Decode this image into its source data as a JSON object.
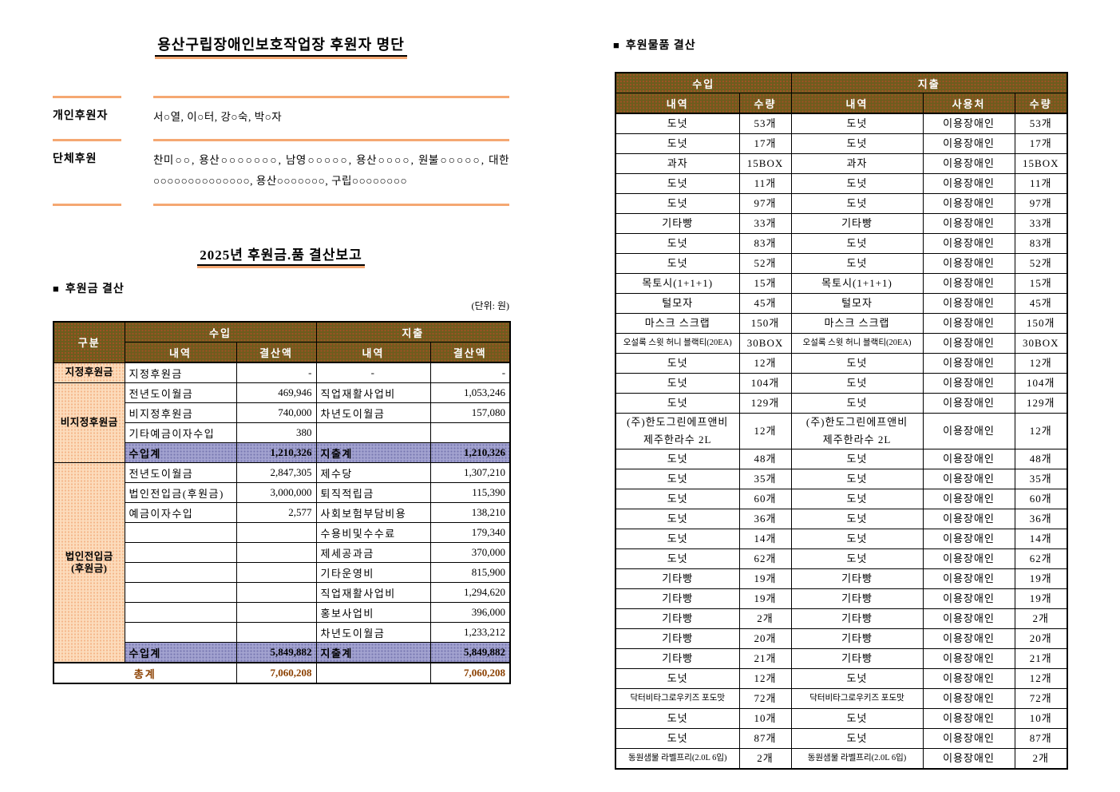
{
  "theme": {
    "header_bg": "#6d5d1d",
    "header_text": "#ffffff",
    "group_cell_bg": "#fcdcbc",
    "subtotal_bg": "#a3a3d0",
    "total_text": "#8b4000",
    "accent_line": "#f5a872"
  },
  "left": {
    "title": "용산구립장애인보호작업장 후원자 명단",
    "donors": {
      "rows": [
        {
          "label": "개인후원자",
          "value": "서○열, 이○터, 강○숙, 박○자"
        },
        {
          "label": "단체후원",
          "value": "찬미○○, 용산○○○○○○○, 남영○○○○○, 용산○○○○, 원불○○○○○, 대한○○○○○○○○○○○○○○, 용산○○○○○○○, 구립○○○○○○○○"
        }
      ]
    },
    "report_title": "2025년 후원금.품 결산보고",
    "section_bullet": "■",
    "section_title": "후원금 결산",
    "unit_note": "(단위: 원)",
    "money_table": {
      "headers": {
        "gubun": "구분",
        "income": "수입",
        "expense": "지출",
        "detail": "내역",
        "amount": "결산액"
      },
      "rows": [
        {
          "group": [
            "지정후원금"
          ],
          "rowspan": 1,
          "cells": [
            "지정후원금",
            "-",
            "-",
            "-"
          ]
        },
        {
          "group": [
            "비지정후원금"
          ],
          "rowspan": 4,
          "cells": [
            "전년도이월금",
            "469,946",
            "직업재활사업비",
            "1,053,246"
          ]
        },
        {
          "cells": [
            "비지정후원금",
            "740,000",
            "차년도이월금",
            "157,080"
          ]
        },
        {
          "cells": [
            "기타예금이자수입",
            "380",
            "",
            ""
          ]
        },
        {
          "subtotal": true,
          "cells": [
            "수입계",
            "1,210,326",
            "지출계",
            "1,210,326"
          ]
        },
        {
          "group": [
            "법인전입금",
            "(후원금)"
          ],
          "rowspan": 10,
          "cells": [
            "전년도이월금",
            "2,847,305",
            "제수당",
            "1,307,210"
          ]
        },
        {
          "cells": [
            "법인전입금(후원금)",
            "3,000,000",
            "퇴직적립금",
            "115,390"
          ]
        },
        {
          "cells": [
            "예금이자수입",
            "2,577",
            "사회보험부담비용",
            "138,210"
          ]
        },
        {
          "cells": [
            "",
            "",
            "수용비및수수료",
            "179,340"
          ]
        },
        {
          "cells": [
            "",
            "",
            "제세공과금",
            "370,000"
          ]
        },
        {
          "cells": [
            "",
            "",
            "기타운영비",
            "815,900"
          ]
        },
        {
          "cells": [
            "",
            "",
            "직업재활사업비",
            "1,294,620"
          ]
        },
        {
          "cells": [
            "",
            "",
            "홍보사업비",
            "396,000"
          ]
        },
        {
          "cells": [
            "",
            "",
            "차년도이월금",
            "1,233,212"
          ]
        },
        {
          "subtotal": true,
          "cells": [
            "수입계",
            "5,849,882",
            "지출계",
            "5,849,882"
          ]
        }
      ],
      "total": {
        "label": "총계",
        "income_amount": "7,060,208",
        "expense_detail": "",
        "expense_amount": "7,060,208"
      }
    }
  },
  "right": {
    "section_bullet": "■",
    "section_title": "후원물품 결산",
    "goods_table": {
      "headers": {
        "income": "수입",
        "expense": "지출",
        "detail": "내역",
        "qty": "수량",
        "user": "사용처"
      },
      "rows": [
        [
          "도넛",
          "53개",
          "도넛",
          "이용장애인",
          "53개"
        ],
        [
          "도넛",
          "17개",
          "도넛",
          "이용장애인",
          "17개"
        ],
        [
          "과자",
          "15BOX",
          "과자",
          "이용장애인",
          "15BOX"
        ],
        [
          "도넛",
          "11개",
          "도넛",
          "이용장애인",
          "11개"
        ],
        [
          "도넛",
          "97개",
          "도넛",
          "이용장애인",
          "97개"
        ],
        [
          "기타빵",
          "33개",
          "기타빵",
          "이용장애인",
          "33개"
        ],
        [
          "도넛",
          "83개",
          "도넛",
          "이용장애인",
          "83개"
        ],
        [
          "도넛",
          "52개",
          "도넛",
          "이용장애인",
          "52개"
        ],
        [
          "목토시(1+1+1)",
          "15개",
          "목토시(1+1+1)",
          "이용장애인",
          "15개"
        ],
        [
          "털모자",
          "45개",
          "털모자",
          "이용장애인",
          "45개"
        ],
        [
          "마스크 스크랩",
          "150개",
          "마스크 스크랩",
          "이용장애인",
          "150개"
        ],
        [
          "오설록 스윗 허니 블랙티(20EA)",
          "30BOX",
          "오설록 스윗 허니 블랙티(20EA)",
          "이용장애인",
          "30BOX"
        ],
        [
          "도넛",
          "12개",
          "도넛",
          "이용장애인",
          "12개"
        ],
        [
          "도넛",
          "104개",
          "도넛",
          "이용장애인",
          "104개"
        ],
        [
          "도넛",
          "129개",
          "도넛",
          "이용장애인",
          "129개"
        ],
        [
          "(주)한도그린에프앤비\n제주한라수 2L",
          "12개",
          "(주)한도그린에프앤비\n제주한라수 2L",
          "이용장애인",
          "12개"
        ],
        [
          "도넛",
          "48개",
          "도넛",
          "이용장애인",
          "48개"
        ],
        [
          "도넛",
          "35개",
          "도넛",
          "이용장애인",
          "35개"
        ],
        [
          "도넛",
          "60개",
          "도넛",
          "이용장애인",
          "60개"
        ],
        [
          "도넛",
          "36개",
          "도넛",
          "이용장애인",
          "36개"
        ],
        [
          "도넛",
          "14개",
          "도넛",
          "이용장애인",
          "14개"
        ],
        [
          "도넛",
          "62개",
          "도넛",
          "이용장애인",
          "62개"
        ],
        [
          "기타빵",
          "19개",
          "기타빵",
          "이용장애인",
          "19개"
        ],
        [
          "기타빵",
          "19개",
          "기타빵",
          "이용장애인",
          "19개"
        ],
        [
          "기타빵",
          "2개",
          "기타빵",
          "이용장애인",
          "2개"
        ],
        [
          "기타빵",
          "20개",
          "기타빵",
          "이용장애인",
          "20개"
        ],
        [
          "기타빵",
          "21개",
          "기타빵",
          "이용장애인",
          "21개"
        ],
        [
          "도넛",
          "12개",
          "도넛",
          "이용장애인",
          "12개"
        ],
        [
          "닥터비타그로우키즈 포도맛",
          "72개",
          "닥터비타그로우키즈 포도맛",
          "이용장애인",
          "72개"
        ],
        [
          "도넛",
          "10개",
          "도넛",
          "이용장애인",
          "10개"
        ],
        [
          "도넛",
          "87개",
          "도넛",
          "이용장애인",
          "87개"
        ],
        [
          "동원샘물 라벨프리(2.0L 6입)",
          "2개",
          "동원샘물 라벨프리(2.0L 6입)",
          "이용장애인",
          "2개"
        ]
      ]
    }
  }
}
